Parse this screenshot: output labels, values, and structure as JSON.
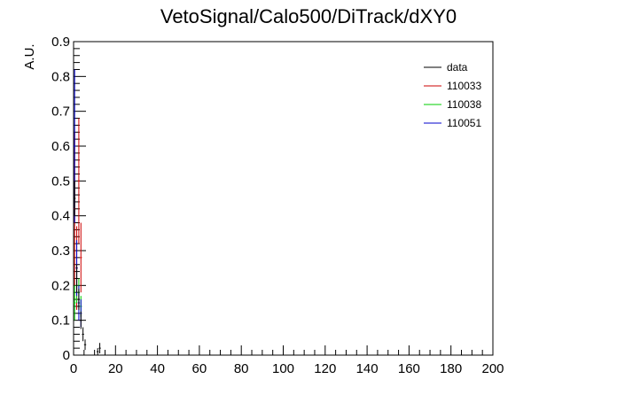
{
  "chart_data": {
    "type": "histogram",
    "title": "VetoSignal/Calo500/DiTrack/dXY0",
    "xlabel": "",
    "ylabel": "A.U.",
    "xlim": [
      0,
      200
    ],
    "ylim": [
      0,
      0.9
    ],
    "x_ticks": [
      0,
      20,
      40,
      60,
      80,
      100,
      120,
      140,
      160,
      180,
      200
    ],
    "y_ticks": [
      0,
      0.1,
      0.2,
      0.3,
      0.4,
      0.5,
      0.6,
      0.7,
      0.8,
      0.9
    ],
    "legend_position": "top-right",
    "grid": false,
    "series": [
      {
        "name": "data",
        "color": "#000000",
        "style": "points-with-errors",
        "points": [
          {
            "x": 0.5,
            "y": 0.45,
            "err": 0.05
          },
          {
            "x": 1.5,
            "y": 0.22,
            "err": 0.04
          },
          {
            "x": 2.5,
            "y": 0.16,
            "err": 0.03
          },
          {
            "x": 3.5,
            "y": 0.1,
            "err": 0.025
          },
          {
            "x": 4.5,
            "y": 0.06,
            "err": 0.02
          },
          {
            "x": 5.5,
            "y": 0.03,
            "err": 0.015
          },
          {
            "x": 11.5,
            "y": 0.01,
            "err": 0.01
          },
          {
            "x": 12.5,
            "y": 0.02,
            "err": 0.015
          }
        ]
      },
      {
        "name": "110033",
        "color": "#cc0000",
        "style": "bars-with-errors",
        "points": [
          {
            "x": 0.5,
            "y": 0.42,
            "err": 0.22
          },
          {
            "x": 1.5,
            "y": 0.25,
            "err": 0.12
          },
          {
            "x": 2.5,
            "y": 0.5,
            "err": 0.18
          },
          {
            "x": 3.5,
            "y": 0.28,
            "err": 0.1
          }
        ]
      },
      {
        "name": "110038",
        "color": "#00cc00",
        "style": "bars-with-errors",
        "points": [
          {
            "x": 0.5,
            "y": 0.15,
            "err": 0.05
          },
          {
            "x": 1.5,
            "y": 0.2,
            "err": 0.05
          },
          {
            "x": 2.5,
            "y": 0.18,
            "err": 0.04
          },
          {
            "x": 3.5,
            "y": 0.14,
            "err": 0.03
          }
        ]
      },
      {
        "name": "110051",
        "color": "#0000cc",
        "style": "bars-with-errors",
        "points": [
          {
            "x": 0.5,
            "y": 0.6,
            "err": 0.22
          },
          {
            "x": 1.5,
            "y": 0.25,
            "err": 0.08
          },
          {
            "x": 2.5,
            "y": 0.15,
            "err": 0.05
          },
          {
            "x": 3.5,
            "y": 0.12,
            "err": 0.04
          }
        ]
      }
    ]
  }
}
